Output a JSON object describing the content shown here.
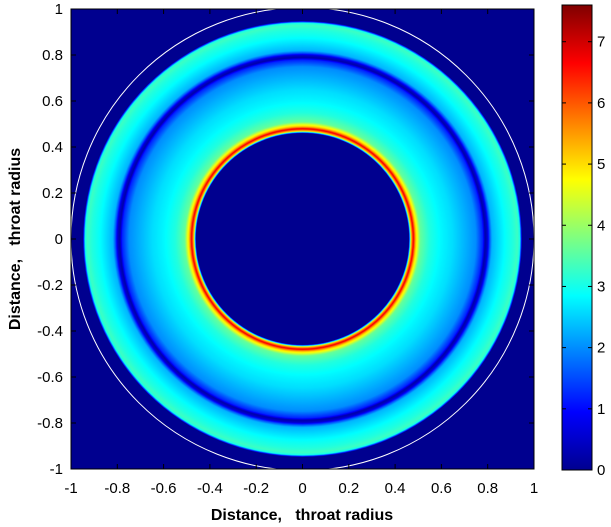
{
  "chart_data": {
    "type": "heatmap",
    "title": "",
    "xlabel": "Distance,   throat radius",
    "ylabel": "Distance,   throat radius",
    "xlim": [
      -1,
      1
    ],
    "ylim": [
      -1,
      1
    ],
    "x_ticks": [
      "-1",
      "-0.8",
      "-0.6",
      "-0.4",
      "-0.2",
      "0",
      "0.2",
      "0.4",
      "0.6",
      "0.8",
      "1"
    ],
    "y_ticks": [
      "1",
      "0.8",
      "0.6",
      "0.4",
      "0.2",
      "0",
      "-0.2",
      "-0.4",
      "-0.6",
      "-0.8",
      "-1"
    ],
    "colormap": "jet",
    "background_color": "#00008f",
    "colorbar": {
      "range": [
        0,
        7.6
      ],
      "ticks": [
        "0",
        "1",
        "2",
        "3",
        "4",
        "5",
        "6",
        "7"
      ]
    },
    "radial_profile": {
      "description": "value as a function of radial distance from the centre (throat radii)",
      "r": [
        0.0,
        0.46,
        0.47,
        0.48,
        0.49,
        0.51,
        0.55,
        0.6,
        0.65,
        0.7,
        0.75,
        0.78,
        0.79,
        0.8,
        0.81,
        0.82,
        0.85,
        0.88,
        0.91,
        0.93,
        0.94,
        0.95,
        1.0
      ],
      "values": [
        0,
        0,
        5.0,
        6.8,
        5.2,
        3.6,
        3.1,
        2.8,
        2.6,
        2.3,
        2.0,
        1.2,
        0.3,
        0.6,
        1.6,
        2.3,
        2.6,
        2.9,
        3.1,
        3.3,
        3.0,
        0,
        0
      ]
    },
    "outer_circle_radius": 1.0
  }
}
